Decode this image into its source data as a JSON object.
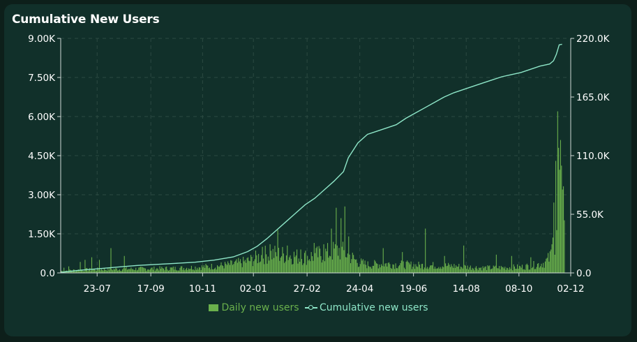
{
  "chart_data": {
    "type": "bar+line",
    "title": "Cumulative New Users",
    "x_tick_labels": [
      "23-07",
      "17-09",
      "10-11",
      "02-01",
      "27-02",
      "24-04",
      "19-06",
      "14-08",
      "08-10",
      "02-12"
    ],
    "y_left": {
      "ticks": [
        "0.0",
        "1.50K",
        "3.00K",
        "4.50K",
        "6.00K",
        "7.50K",
        "9.00K"
      ],
      "range": [
        0,
        9000
      ]
    },
    "y_right": {
      "ticks": [
        "0.0",
        "55.0K",
        "110.0K",
        "165.0K",
        "220.0K"
      ],
      "range": [
        0,
        220000
      ]
    },
    "x_range_days": [
      0,
      525
    ],
    "x_tick_days": [
      38,
      94,
      148,
      201,
      257,
      312,
      368,
      423,
      478,
      532
    ],
    "series": [
      {
        "name": "Daily new users",
        "type": "bar",
        "axis": "left",
        "color": "#6ab04c",
        "keypoints": [
          [
            0,
            80
          ],
          [
            10,
            100
          ],
          [
            20,
            120
          ],
          [
            40,
            140
          ],
          [
            60,
            150
          ],
          [
            80,
            160
          ],
          [
            100,
            170
          ],
          [
            120,
            180
          ],
          [
            140,
            220
          ],
          [
            160,
            260
          ],
          [
            175,
            320
          ],
          [
            190,
            420
          ],
          [
            200,
            520
          ],
          [
            210,
            700
          ],
          [
            220,
            750
          ],
          [
            230,
            720
          ],
          [
            240,
            680
          ],
          [
            250,
            620
          ],
          [
            260,
            650
          ],
          [
            270,
            720
          ],
          [
            280,
            800
          ],
          [
            290,
            900
          ],
          [
            300,
            700
          ],
          [
            310,
            420
          ],
          [
            320,
            320
          ],
          [
            330,
            340
          ],
          [
            340,
            360
          ],
          [
            350,
            330
          ],
          [
            360,
            320
          ],
          [
            370,
            300
          ],
          [
            380,
            290
          ],
          [
            390,
            290
          ],
          [
            400,
            280
          ],
          [
            410,
            270
          ],
          [
            420,
            240
          ],
          [
            430,
            220
          ],
          [
            440,
            200
          ],
          [
            450,
            200
          ],
          [
            460,
            210
          ],
          [
            470,
            220
          ],
          [
            480,
            230
          ],
          [
            490,
            280
          ],
          [
            500,
            360
          ],
          [
            505,
            420
          ],
          [
            510,
            600
          ],
          [
            515,
            1500
          ],
          [
            517,
            2800
          ],
          [
            520,
            5000
          ],
          [
            522,
            4200
          ],
          [
            525,
            1900
          ]
        ],
        "spikes": [
          [
            3,
            200
          ],
          [
            8,
            250
          ],
          [
            20,
            420
          ],
          [
            25,
            500
          ],
          [
            32,
            600
          ],
          [
            40,
            500
          ],
          [
            52,
            950
          ],
          [
            66,
            650
          ],
          [
            210,
            1000
          ],
          [
            218,
            1100
          ],
          [
            226,
            1650
          ],
          [
            236,
            1050
          ],
          [
            250,
            900
          ],
          [
            264,
            1150
          ],
          [
            274,
            1100
          ],
          [
            282,
            1700
          ],
          [
            287,
            2500
          ],
          [
            292,
            2100
          ],
          [
            296,
            2550
          ],
          [
            300,
            1400
          ],
          [
            336,
            950
          ],
          [
            356,
            800
          ],
          [
            380,
            1700
          ],
          [
            400,
            650
          ],
          [
            420,
            1050
          ],
          [
            454,
            700
          ],
          [
            470,
            650
          ],
          [
            490,
            600
          ],
          [
            512,
            1100
          ],
          [
            514,
            2700
          ],
          [
            516,
            4300
          ],
          [
            518,
            6200
          ],
          [
            519,
            4800
          ],
          [
            521,
            5100
          ],
          [
            523,
            3200
          ]
        ]
      },
      {
        "name": "Cumulative new users",
        "type": "line",
        "axis": "right",
        "color": "#8ee6c8",
        "points": [
          [
            0,
            500
          ],
          [
            20,
            2500
          ],
          [
            40,
            4000
          ],
          [
            60,
            5500
          ],
          [
            80,
            7000
          ],
          [
            100,
            8000
          ],
          [
            120,
            9000
          ],
          [
            140,
            10000
          ],
          [
            160,
            12000
          ],
          [
            180,
            15000
          ],
          [
            195,
            20000
          ],
          [
            205,
            25000
          ],
          [
            215,
            32000
          ],
          [
            225,
            40000
          ],
          [
            235,
            48000
          ],
          [
            245,
            56000
          ],
          [
            255,
            64000
          ],
          [
            265,
            70000
          ],
          [
            275,
            78000
          ],
          [
            285,
            86000
          ],
          [
            295,
            95000
          ],
          [
            300,
            108000
          ],
          [
            310,
            122000
          ],
          [
            320,
            130000
          ],
          [
            330,
            133000
          ],
          [
            340,
            136000
          ],
          [
            350,
            139000
          ],
          [
            360,
            145000
          ],
          [
            370,
            150000
          ],
          [
            380,
            155000
          ],
          [
            390,
            160000
          ],
          [
            400,
            165000
          ],
          [
            410,
            169000
          ],
          [
            420,
            172000
          ],
          [
            430,
            175000
          ],
          [
            440,
            178000
          ],
          [
            450,
            181000
          ],
          [
            460,
            184000
          ],
          [
            470,
            186000
          ],
          [
            480,
            188000
          ],
          [
            490,
            191000
          ],
          [
            500,
            194000
          ],
          [
            510,
            196000
          ],
          [
            514,
            199000
          ],
          [
            517,
            205000
          ],
          [
            520,
            214000
          ],
          [
            523,
            214500
          ]
        ]
      }
    ],
    "grid": true,
    "legend_placement": "bottom-center"
  }
}
